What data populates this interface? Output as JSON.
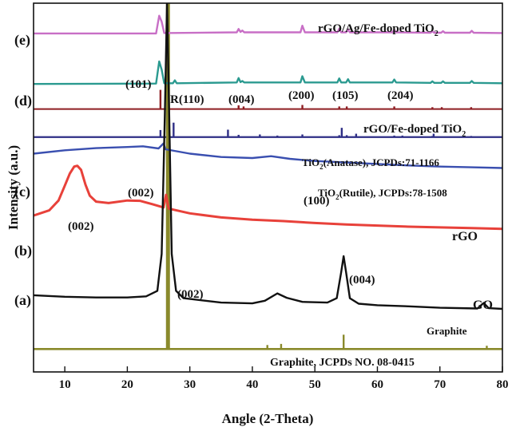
{
  "chart_data": {
    "type": "line",
    "xlabel": "Angle (2-Theta)",
    "ylabel": "Intensity (a.u.)",
    "xlim": [
      5,
      80
    ],
    "ylim": [
      0,
      100
    ],
    "x_ticks": [
      10,
      20,
      30,
      40,
      50,
      60,
      70,
      80
    ],
    "y_ticks_shown": false,
    "grid": false,
    "legend": "none",
    "colors": {
      "e": "#c86fc6",
      "d": "#2b9a90",
      "rgo_fe_tio2": "#8e1d22",
      "anatase": "#2e2e86",
      "rutile": "#2e2e86",
      "c": "#3a4fb0",
      "b": "#e8413a",
      "a": "#111111",
      "graphite": "#8a8a2c"
    },
    "series": [
      {
        "key": "e",
        "curve_label": "(e)",
        "name": "rGO/Ag/Fe-doped TiO2",
        "kind": "line",
        "points": [
          [
            5,
            91.8
          ],
          [
            24.6,
            91.8
          ],
          [
            25.1,
            96.6
          ],
          [
            25.5,
            95
          ],
          [
            25.9,
            91.9
          ],
          [
            37.5,
            92.1
          ],
          [
            37.8,
            93
          ],
          [
            38.1,
            92.2
          ],
          [
            38.4,
            92.6
          ],
          [
            38.7,
            92.1
          ],
          [
            47.7,
            92.1
          ],
          [
            48,
            93.9
          ],
          [
            48.4,
            92.1
          ],
          [
            53.6,
            92.1
          ],
          [
            53.9,
            93.1
          ],
          [
            54.2,
            92.1
          ],
          [
            55,
            92.1
          ],
          [
            55.3,
            92.9
          ],
          [
            55.6,
            92.1
          ],
          [
            62.4,
            92.1
          ],
          [
            62.7,
            92.8
          ],
          [
            63,
            92.1
          ],
          [
            68.5,
            92
          ],
          [
            68.8,
            92.4
          ],
          [
            69.1,
            92
          ],
          [
            70.2,
            92
          ],
          [
            70.5,
            92.4
          ],
          [
            70.8,
            92
          ],
          [
            74.8,
            92
          ],
          [
            75.1,
            92.5
          ],
          [
            75.4,
            92
          ],
          [
            80,
            91.9
          ]
        ]
      },
      {
        "key": "d",
        "curve_label": "(d)",
        "name": "",
        "kind": "line",
        "points": [
          [
            5,
            78.1
          ],
          [
            24.6,
            78.2
          ],
          [
            25.1,
            84.2
          ],
          [
            25.5,
            82
          ],
          [
            25.9,
            78.3
          ],
          [
            27.3,
            78.3
          ],
          [
            27.6,
            79.1
          ],
          [
            27.9,
            78.3
          ],
          [
            37.5,
            78.5
          ],
          [
            37.8,
            79.7
          ],
          [
            38.1,
            78.6
          ],
          [
            38.4,
            78.9
          ],
          [
            38.7,
            78.5
          ],
          [
            47.7,
            78.5
          ],
          [
            48,
            80.2
          ],
          [
            48.4,
            78.5
          ],
          [
            53.6,
            78.5
          ],
          [
            53.9,
            79.6
          ],
          [
            54.2,
            78.5
          ],
          [
            55,
            78.5
          ],
          [
            55.3,
            79.4
          ],
          [
            55.6,
            78.5
          ],
          [
            62.4,
            78.5
          ],
          [
            62.7,
            79.3
          ],
          [
            63,
            78.5
          ],
          [
            68.5,
            78.4
          ],
          [
            68.8,
            78.8
          ],
          [
            69.1,
            78.4
          ],
          [
            70.2,
            78.4
          ],
          [
            70.5,
            78.8
          ],
          [
            70.8,
            78.4
          ],
          [
            74.8,
            78.4
          ],
          [
            75.1,
            78.9
          ],
          [
            75.4,
            78.4
          ],
          [
            80,
            78.3
          ]
        ]
      },
      {
        "key": "rgo_fe_tio2",
        "name": "rGO/Fe-doped TiO2",
        "kind": "sticks",
        "baseline": 71.3,
        "sticks": [
          [
            25.3,
            76.5
          ],
          [
            37.8,
            72.3
          ],
          [
            38.6,
            72
          ],
          [
            48,
            72.4
          ],
          [
            53.9,
            72
          ],
          [
            55.1,
            72
          ],
          [
            62.7,
            72
          ],
          [
            68.8,
            71.8
          ],
          [
            70.3,
            71.8
          ],
          [
            75,
            71.8
          ]
        ]
      },
      {
        "key": "anatase",
        "name": "TiO2(Anatase), JCPDs:71-1166",
        "kind": "sticks",
        "baseline": 63.7,
        "sticks": [
          [
            25.3,
            65.6
          ],
          [
            37.8,
            64.3
          ],
          [
            48,
            64.4
          ],
          [
            53.9,
            64.2
          ],
          [
            55.1,
            64.2
          ],
          [
            62.7,
            64.1
          ],
          [
            68.8,
            64
          ],
          [
            75,
            64
          ]
        ]
      },
      {
        "key": "rutile",
        "name": "TiO2(Rutile), JCPDs:78-1508",
        "kind": "sticks",
        "baseline": 63.7,
        "sticks": [
          [
            27.4,
            67.6
          ],
          [
            36.1,
            65.7
          ],
          [
            41.2,
            64.4
          ],
          [
            44,
            64.1
          ],
          [
            54.3,
            66.2
          ],
          [
            56.6,
            64.6
          ],
          [
            64,
            64.1
          ],
          [
            69,
            64.6
          ]
        ]
      },
      {
        "key": "c",
        "curve_label": "(c)",
        "name": "rGO",
        "kind": "line",
        "points": [
          [
            5,
            59.2
          ],
          [
            10,
            60.1
          ],
          [
            15,
            60.7
          ],
          [
            20,
            61
          ],
          [
            22.5,
            61.2
          ],
          [
            25,
            60.6
          ],
          [
            25.8,
            62
          ],
          [
            26.1,
            60.4
          ],
          [
            30,
            59.2
          ],
          [
            35,
            58.3
          ],
          [
            40,
            58
          ],
          [
            43,
            58.5
          ],
          [
            46,
            57.8
          ],
          [
            50,
            57.2
          ],
          [
            55,
            56.8
          ],
          [
            60,
            56.4
          ],
          [
            65,
            56
          ],
          [
            70,
            55.7
          ],
          [
            75,
            55.5
          ],
          [
            80,
            55.3
          ]
        ]
      },
      {
        "key": "b",
        "curve_label": "(b)",
        "name": "",
        "kind": "line",
        "points": [
          [
            5,
            42.4
          ],
          [
            7.5,
            43.8
          ],
          [
            9,
            46.5
          ],
          [
            10,
            50.5
          ],
          [
            10.8,
            53.8
          ],
          [
            11.5,
            55.7
          ],
          [
            12,
            55.9
          ],
          [
            12.6,
            54.8
          ],
          [
            13.3,
            50.8
          ],
          [
            14,
            47.8
          ],
          [
            15,
            46.2
          ],
          [
            17,
            45.8
          ],
          [
            20,
            46.5
          ],
          [
            22,
            46.4
          ],
          [
            24,
            45.5
          ],
          [
            25.8,
            44.6
          ],
          [
            26.2,
            48
          ],
          [
            26.6,
            44.3
          ],
          [
            30,
            43
          ],
          [
            35,
            41.9
          ],
          [
            40,
            41.3
          ],
          [
            45,
            40.9
          ],
          [
            50,
            40.4
          ],
          [
            55,
            40
          ],
          [
            60,
            39.7
          ],
          [
            65,
            39.4
          ],
          [
            70,
            39.2
          ],
          [
            75,
            39
          ],
          [
            80,
            38.8
          ]
        ]
      },
      {
        "key": "a",
        "curve_label": "(a)",
        "name": "GO",
        "kind": "line",
        "points": [
          [
            5,
            20.8
          ],
          [
            10,
            20.4
          ],
          [
            15,
            20.2
          ],
          [
            20,
            20.2
          ],
          [
            23,
            20.5
          ],
          [
            24.8,
            22
          ],
          [
            25.5,
            32
          ],
          [
            26,
            70
          ],
          [
            26.35,
            100
          ],
          [
            26.7,
            70
          ],
          [
            27.1,
            32
          ],
          [
            27.8,
            22
          ],
          [
            29,
            20
          ],
          [
            35,
            18.8
          ],
          [
            40,
            18.6
          ],
          [
            42,
            19.3
          ],
          [
            44,
            21.3
          ],
          [
            45.5,
            20.1
          ],
          [
            48,
            19
          ],
          [
            52,
            18.8
          ],
          [
            53.5,
            20
          ],
          [
            54.2,
            27
          ],
          [
            54.6,
            31.4
          ],
          [
            55,
            27
          ],
          [
            55.6,
            20
          ],
          [
            57,
            18.5
          ],
          [
            60,
            18.1
          ],
          [
            65,
            17.8
          ],
          [
            70,
            17.4
          ],
          [
            76,
            17.2
          ],
          [
            77,
            18.7
          ],
          [
            77.8,
            17.3
          ],
          [
            80,
            17.1
          ]
        ]
      },
      {
        "key": "graphite",
        "name": "Graphite",
        "kind": "sticks",
        "baseline": 6.2,
        "sticks": [
          [
            26.5,
            100
          ],
          [
            42.4,
            7.3
          ],
          [
            44.6,
            7.6
          ],
          [
            54.6,
            10.1
          ],
          [
            77.5,
            7.1
          ]
        ]
      }
    ],
    "labels": {
      "curve_e": "(e)",
      "curve_d": "(d)",
      "curve_c": "(c)",
      "curve_b": "(b)",
      "curve_a": "(a)",
      "title_e": "rGO/Ag/Fe-doped TiO",
      "title_fe": "rGO/Fe-doped TiO",
      "sub2": "2",
      "anatase_pre": "TiO",
      "anatase_post": "(Anatase), JCPDs:71-1166",
      "rutile_pre": "TiO",
      "rutile_post": "(Rutile), JCPDs:78-1508",
      "rgo": "rGO",
      "go": "GO",
      "graphite": "Graphite",
      "graphite_ref": "Graphite, JCPDs NO. 08-0415",
      "peak_101": "(101)",
      "peak_r110": "R(110)",
      "peak_004_d": "(004)",
      "peak_200": "(200)",
      "peak_105": "(105)",
      "peak_204": "(204)",
      "peak_002_c": "(002)",
      "peak_100": "(100)",
      "peak_002_b": "(002)",
      "peak_002_a": "(002)",
      "peak_004_a": "(004)"
    }
  }
}
